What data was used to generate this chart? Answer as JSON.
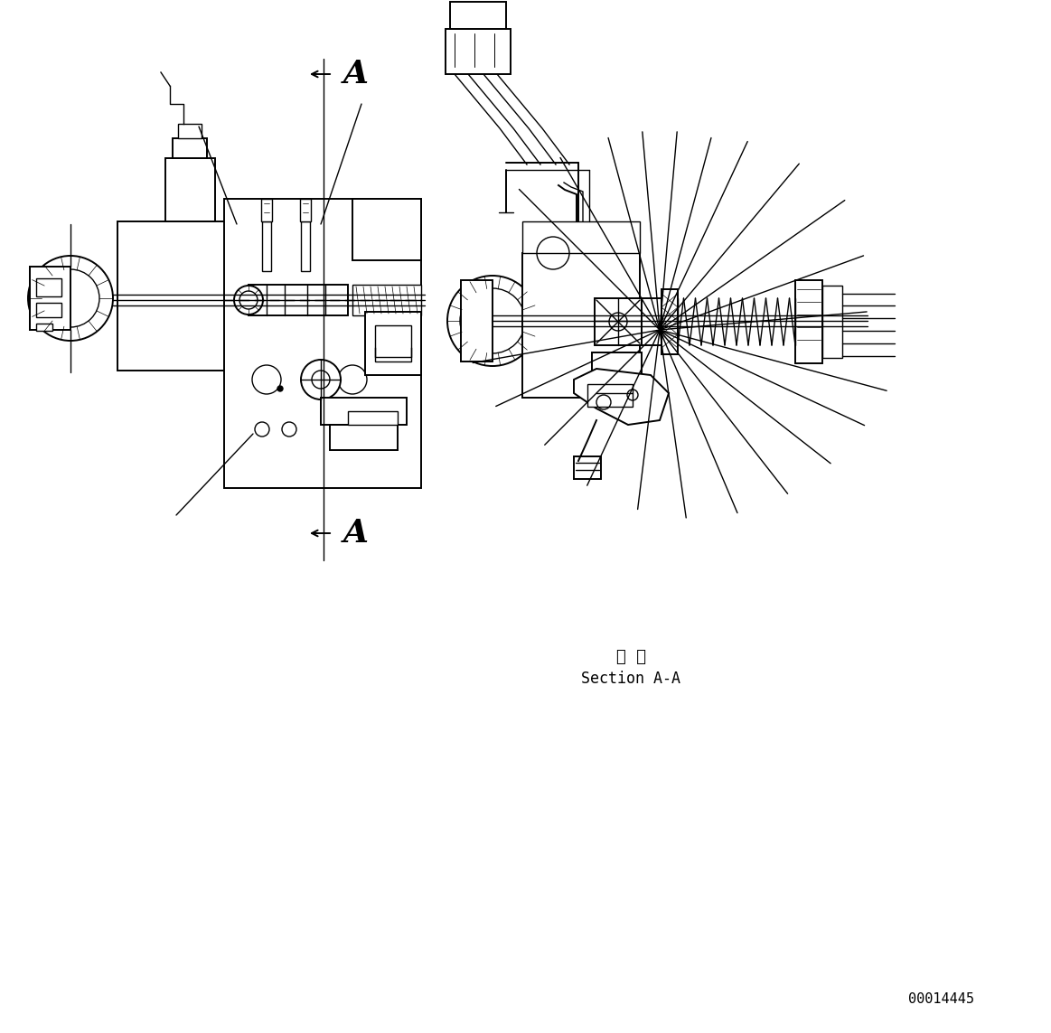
{
  "bg_color": "#ffffff",
  "line_color": "#000000",
  "fig_width": 11.63,
  "fig_height": 11.43,
  "dpi": 100,
  "section_label_ja": "断  面",
  "section_label_en": "Section A-A",
  "part_number": "00014445"
}
